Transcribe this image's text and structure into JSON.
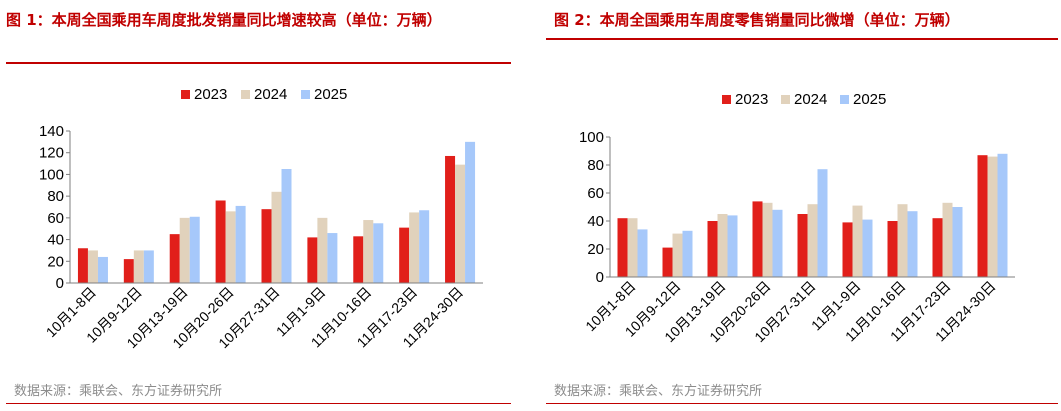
{
  "colors": {
    "accent": "#c00000",
    "s2023": "#e11f1a",
    "s2024": "#e1d2bc",
    "s2025": "#a6c8fa",
    "source": "#8c8c8c"
  },
  "categories": [
    "10月1-8日",
    "10月9-12日",
    "10月13-19日",
    "10月20-26日",
    "10月27-31日",
    "11月1-9日",
    "11月10-16日",
    "11月17-23日",
    "11月24-30日"
  ],
  "left": {
    "title": "图 1：本周全国乘用车周度批发销量同比增速较高（单位：万辆）",
    "source": "数据来源：乘联会、东方证券研究所"
  },
  "right": {
    "title": "图 2：本周全国乘用车周度零售销量同比微增（单位：万辆）",
    "source": "数据来源：乘联会、东方证券研究所"
  },
  "chart_data": [
    {
      "type": "bar",
      "title": "图 1：本周全国乘用车周度批发销量同比增速较高（单位：万辆）",
      "categories": [
        "10月1-8日",
        "10月9-12日",
        "10月13-19日",
        "10月20-26日",
        "10月27-31日",
        "11月1-9日",
        "11月10-16日",
        "11月17-23日",
        "11月24-30日"
      ],
      "series": [
        {
          "name": "2023",
          "values": [
            32,
            22,
            45,
            76,
            68,
            42,
            43,
            51,
            117
          ]
        },
        {
          "name": "2024",
          "values": [
            30,
            30,
            60,
            66,
            84,
            60,
            58,
            65,
            109
          ]
        },
        {
          "name": "2025",
          "values": [
            24,
            30,
            61,
            71,
            105,
            46,
            55,
            67,
            130
          ]
        }
      ],
      "ylim": [
        0,
        140
      ],
      "yticks": [
        0,
        20,
        40,
        60,
        80,
        100,
        120,
        140
      ],
      "legend": "top-center",
      "grid": false
    },
    {
      "type": "bar",
      "title": "图 2：本周全国乘用车周度零售销量同比微增（单位：万辆）",
      "categories": [
        "10月1-8日",
        "10月9-12日",
        "10月13-19日",
        "10月20-26日",
        "10月27-31日",
        "11月1-9日",
        "11月10-16日",
        "11月17-23日",
        "11月24-30日"
      ],
      "series": [
        {
          "name": "2023",
          "values": [
            42,
            21,
            40,
            54,
            45,
            39,
            40,
            42,
            87
          ]
        },
        {
          "name": "2024",
          "values": [
            42,
            31,
            45,
            53,
            52,
            51,
            52,
            53,
            86
          ]
        },
        {
          "name": "2025",
          "values": [
            34,
            33,
            44,
            48,
            77,
            41,
            47,
            50,
            88
          ]
        }
      ],
      "ylim": [
        0,
        100
      ],
      "yticks": [
        0,
        20,
        40,
        60,
        80,
        100
      ],
      "legend": "top-center",
      "grid": false
    }
  ]
}
